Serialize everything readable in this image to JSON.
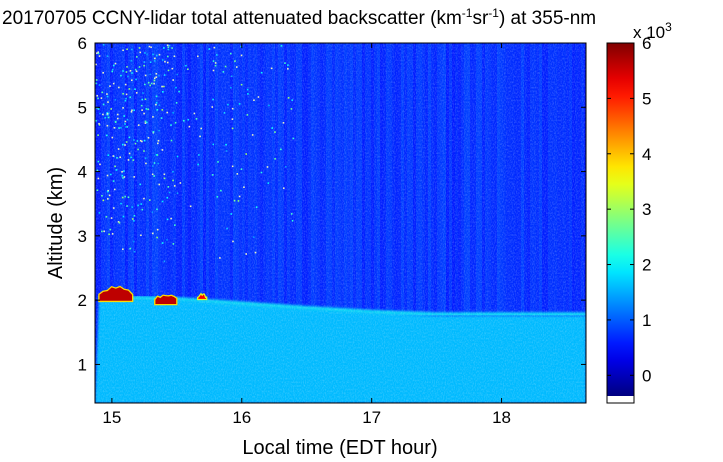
{
  "chart_data": {
    "type": "heatmap",
    "title": {
      "prefix": "20170705 CCNY-lidar total attenuated backscatter (km",
      "sup1": "-1",
      "mid": "sr",
      "sup2": "-1",
      "suffix": ") at 355-nm"
    },
    "xlabel": "Local time (EDT hour)",
    "ylabel": "Altitude (km)",
    "xlim": [
      14.87,
      18.65
    ],
    "ylim": [
      0.4,
      6.0
    ],
    "xticks": [
      15,
      16,
      17,
      18
    ],
    "yticks": [
      1,
      2,
      3,
      4,
      5,
      6
    ],
    "colorbar": {
      "colormap": "jet",
      "clim": [
        -0.5,
        6.0
      ],
      "ticks": [
        0,
        1,
        2,
        3,
        4,
        5,
        6
      ],
      "exponent_label": {
        "base": "x 10",
        "exp": "3"
      }
    },
    "background_value": 0.6,
    "boundary_layer_top": [
      {
        "x": 14.9,
        "y": 2.03
      },
      {
        "x": 15.5,
        "y": 2.0
      },
      {
        "x": 16.0,
        "y": 1.93
      },
      {
        "x": 16.5,
        "y": 1.86
      },
      {
        "x": 17.0,
        "y": 1.8
      },
      {
        "x": 17.5,
        "y": 1.76
      },
      {
        "x": 18.0,
        "y": 1.76
      },
      {
        "x": 18.65,
        "y": 1.76
      }
    ],
    "boundary_layer_value": 1.5,
    "cloud_segments": [
      {
        "x_start": 14.9,
        "x_end": 15.16,
        "alt_min": 1.98,
        "alt_max": 2.2,
        "value": 6.0
      },
      {
        "x_start": 15.33,
        "x_end": 15.5,
        "alt_min": 1.93,
        "alt_max": 2.08,
        "value": 6.0
      },
      {
        "x_start": 15.66,
        "x_end": 15.73,
        "alt_min": 2.01,
        "alt_max": 2.08,
        "value": 5.6
      }
    ],
    "noise_region": {
      "x_start": 14.87,
      "x_end": 15.5,
      "alt_min": 2.6,
      "alt_max": 6.0
    }
  }
}
